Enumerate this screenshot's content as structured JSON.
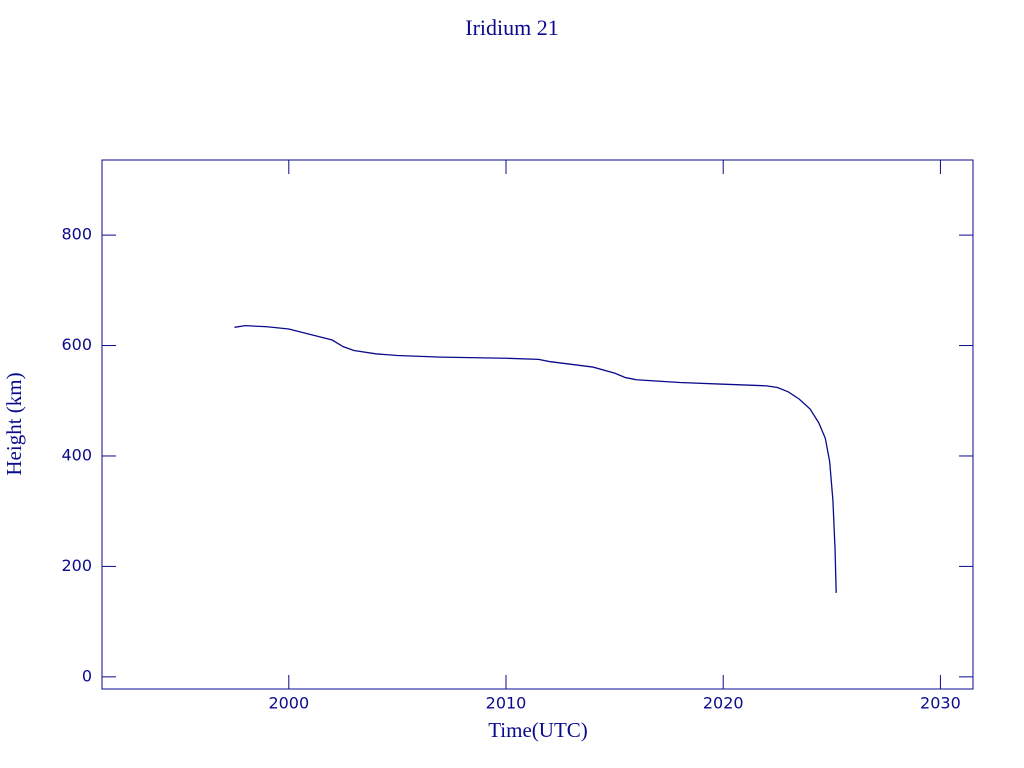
{
  "chart_data": {
    "type": "line",
    "title": "Iridium 21",
    "x_label": "Time(UTC)",
    "y_label": "Height (km)",
    "color": "#0a0a8c",
    "xlim": [
      1991.4,
      2031.5
    ],
    "ylim": [
      -22,
      936
    ],
    "xticks": [
      2000,
      2010,
      2020,
      2030
    ],
    "yticks": [
      0,
      200,
      400,
      600,
      800
    ],
    "x": [
      1997.5,
      1998,
      1999,
      2000,
      2001,
      2002,
      2002.5,
      2003,
      2004,
      2005,
      2007,
      2010,
      2011.5,
      2012,
      2013,
      2014,
      2015,
      2015.5,
      2016,
      2018,
      2020,
      2022,
      2022.5,
      2023,
      2023.5,
      2024,
      2024.4,
      2024.7,
      2024.9,
      2025.05,
      2025.15,
      2025.2
    ],
    "values": [
      633,
      636,
      634,
      630,
      620,
      610,
      598,
      591,
      585,
      582,
      579,
      577,
      575,
      571,
      566,
      561,
      550,
      542,
      538,
      533,
      530,
      527,
      524,
      516,
      503,
      485,
      460,
      432,
      390,
      320,
      230,
      152
    ]
  }
}
